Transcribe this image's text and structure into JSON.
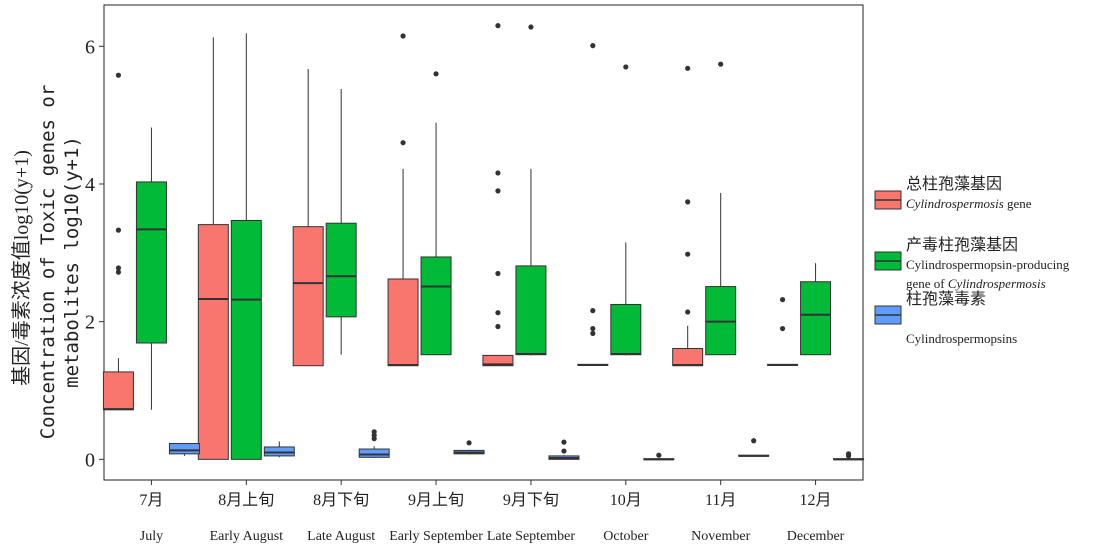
{
  "chart_data": {
    "type": "boxplot",
    "ylabel_cn": "基因/毒素浓度值log10(y+1)",
    "ylabel_en_line1": "Concentration of Toxic genes or",
    "ylabel_en_line2": "metabolites log10(y+1)",
    "ylim": [
      -0.3,
      6.6
    ],
    "yticks": [
      0,
      2,
      4,
      6
    ],
    "grid": false,
    "legend_position": "right",
    "categories": [
      {
        "cn": "7月",
        "en": "July"
      },
      {
        "cn": "8月上旬",
        "en": "Early August"
      },
      {
        "cn": "8月下旬",
        "en": "Late August"
      },
      {
        "cn": "9月上旬",
        "en": "Early September"
      },
      {
        "cn": "9月下旬",
        "en": "Late September"
      },
      {
        "cn": "10月",
        "en": "October"
      },
      {
        "cn": "11月",
        "en": "November"
      },
      {
        "cn": "12月",
        "en": "December"
      }
    ],
    "series": [
      {
        "name_cn": "总柱孢藻基因",
        "name_en": "Cylindrospermosis gene",
        "color": "#F8766D",
        "boxes": [
          {
            "whislo": 0.72,
            "q1": 0.72,
            "med": 0.73,
            "q3": 1.27,
            "whishi": 1.47,
            "fliers": [
              2.72,
              2.78,
              3.33,
              5.58
            ]
          },
          {
            "whislo": 0.0,
            "q1": 0.0,
            "med": 2.33,
            "q3": 3.41,
            "whishi": 6.13,
            "fliers": []
          },
          {
            "whislo": 1.36,
            "q1": 1.36,
            "med": 2.56,
            "q3": 3.38,
            "whishi": 5.67,
            "fliers": []
          },
          {
            "whislo": 1.36,
            "q1": 1.36,
            "med": 1.37,
            "q3": 2.62,
            "whishi": 4.22,
            "fliers": [
              4.6,
              6.15
            ]
          },
          {
            "whislo": 1.36,
            "q1": 1.36,
            "med": 1.38,
            "q3": 1.51,
            "whishi": 1.51,
            "fliers": [
              1.93,
              2.13,
              2.7,
              3.9,
              4.16,
              6.3
            ]
          },
          {
            "whislo": 1.37,
            "q1": 1.37,
            "med": 1.37,
            "q3": 1.38,
            "whishi": 1.38,
            "fliers": [
              1.83,
              1.9,
              2.16,
              6.01
            ]
          },
          {
            "whislo": 1.36,
            "q1": 1.36,
            "med": 1.37,
            "q3": 1.61,
            "whishi": 1.94,
            "fliers": [
              2.14,
              2.98,
              3.74,
              5.68
            ]
          },
          {
            "whislo": 1.37,
            "q1": 1.37,
            "med": 1.37,
            "q3": 1.38,
            "whishi": 1.38,
            "fliers": [
              1.9,
              2.32
            ]
          }
        ]
      },
      {
        "name_cn": "产毒柱孢藻基因",
        "name_en": "Cylindrospermopsin-producing gene of Cylindrospermosis",
        "color": "#00BA38",
        "boxes": [
          {
            "whislo": 0.72,
            "q1": 1.69,
            "med": 3.34,
            "q3": 4.03,
            "whishi": 4.82,
            "fliers": []
          },
          {
            "whislo": 0.0,
            "q1": 0.0,
            "med": 2.32,
            "q3": 3.47,
            "whishi": 6.19,
            "fliers": []
          },
          {
            "whislo": 1.52,
            "q1": 2.07,
            "med": 2.66,
            "q3": 3.43,
            "whishi": 5.38,
            "fliers": []
          },
          {
            "whislo": 1.52,
            "q1": 1.52,
            "med": 2.51,
            "q3": 2.94,
            "whishi": 4.89,
            "fliers": [
              5.6
            ]
          },
          {
            "whislo": 1.51,
            "q1": 1.52,
            "med": 1.53,
            "q3": 2.81,
            "whishi": 4.22,
            "fliers": [
              6.28
            ]
          },
          {
            "whislo": 1.51,
            "q1": 1.52,
            "med": 1.53,
            "q3": 2.25,
            "whishi": 3.15,
            "fliers": [
              5.7
            ]
          },
          {
            "whislo": 1.52,
            "q1": 1.52,
            "med": 2.0,
            "q3": 2.51,
            "whishi": 3.87,
            "fliers": [
              5.74
            ]
          },
          {
            "whislo": 1.52,
            "q1": 1.52,
            "med": 2.1,
            "q3": 2.58,
            "whishi": 2.85,
            "fliers": []
          }
        ]
      },
      {
        "name_cn": "柱孢藻毒素",
        "name_en": "Cylindrospermopsins",
        "color": "#619CFF",
        "boxes": [
          {
            "whislo": 0.05,
            "q1": 0.08,
            "med": 0.13,
            "q3": 0.23,
            "whishi": 0.23,
            "fliers": []
          },
          {
            "whislo": 0.03,
            "q1": 0.05,
            "med": 0.1,
            "q3": 0.18,
            "whishi": 0.26,
            "fliers": []
          },
          {
            "whislo": 0.02,
            "q1": 0.03,
            "med": 0.07,
            "q3": 0.15,
            "whishi": 0.19,
            "fliers": [
              0.3,
              0.35,
              0.4
            ]
          },
          {
            "whislo": 0.07,
            "q1": 0.08,
            "med": 0.1,
            "q3": 0.13,
            "whishi": 0.14,
            "fliers": [
              0.24
            ]
          },
          {
            "whislo": 0.0,
            "q1": 0.0,
            "med": 0.02,
            "q3": 0.05,
            "whishi": 0.06,
            "fliers": [
              0.12,
              0.25
            ]
          },
          {
            "whislo": 0.0,
            "q1": 0.0,
            "med": 0.0,
            "q3": 0.01,
            "whishi": 0.01,
            "fliers": [
              0.06
            ]
          },
          {
            "whislo": 0.05,
            "q1": 0.05,
            "med": 0.05,
            "q3": 0.06,
            "whishi": 0.06,
            "fliers": [
              0.27
            ]
          },
          {
            "whislo": 0.0,
            "q1": 0.0,
            "med": 0.0,
            "q3": 0.01,
            "whishi": 0.01,
            "fliers": [
              0.05,
              0.08
            ]
          }
        ]
      }
    ]
  }
}
